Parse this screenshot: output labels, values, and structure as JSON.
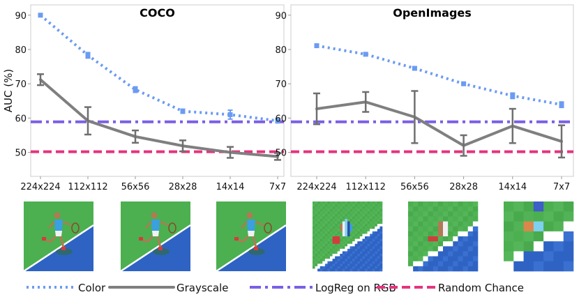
{
  "colors": {
    "color": "#6b9bf2",
    "grayscale": "#7f7f7f",
    "logreg": "#7b5fe6",
    "random": "#e6337f",
    "grass": "#4caf50",
    "court": "#2e63c4"
  },
  "chart_data": [
    {
      "type": "line",
      "title": "COCO",
      "ylabel": "AUC (%)",
      "xlabel": "",
      "categories": [
        "224x224",
        "112x112",
        "56x56",
        "28x28",
        "14x14",
        "7x7"
      ],
      "ylim": [
        43,
        93
      ],
      "yticks": [
        50,
        60,
        70,
        80,
        90
      ],
      "series": [
        {
          "name": "Color",
          "style": "dotted",
          "values": [
            90,
            78.3,
            68.3,
            62,
            61,
            59.2
          ],
          "err": [
            0.4,
            0.8,
            0.8,
            0.6,
            1.3,
            0.6
          ]
        },
        {
          "name": "Grayscale",
          "style": "solid",
          "values": [
            71.2,
            59.2,
            54.6,
            51.9,
            50,
            48.8
          ],
          "err": [
            1.6,
            4,
            1.8,
            1.6,
            1.6,
            1
          ]
        }
      ],
      "hlines": [
        {
          "name": "LogReg on RGB",
          "style": "dashdot",
          "value": 58.9
        },
        {
          "name": "Random Chance",
          "style": "dashed",
          "value": 50.2
        }
      ]
    },
    {
      "type": "line",
      "title": "OpenImages",
      "ylabel": "",
      "xlabel": "",
      "categories": [
        "224x224",
        "112x112",
        "56x56",
        "28x28",
        "14x14",
        "7x7"
      ],
      "ylim": [
        43,
        93
      ],
      "yticks": [
        50,
        60,
        70,
        80,
        90
      ],
      "series": [
        {
          "name": "Color",
          "style": "dotted",
          "values": [
            81.1,
            78.6,
            74.5,
            70,
            66.5,
            63.9
          ],
          "err": [
            0.4,
            0.4,
            0.4,
            0.4,
            0.8,
            0.8
          ]
        },
        {
          "name": "Grayscale",
          "style": "solid",
          "values": [
            62.7,
            64.7,
            60.3,
            52,
            57.7,
            53.2
          ],
          "err": [
            4.5,
            2.9,
            7.6,
            3,
            5,
            4.7
          ]
        }
      ],
      "hlines": [
        {
          "name": "LogReg on RGB",
          "style": "dashdot",
          "value": 58.9
        },
        {
          "name": "Random Chance",
          "style": "dashed",
          "value": 50.2
        }
      ]
    }
  ],
  "thumbnails": {
    "resolutions": [
      "224x224",
      "112x112",
      "56x56",
      "28x28",
      "14x14",
      "7x7"
    ],
    "subject": "tennis-player-on-court"
  },
  "legend": [
    {
      "label": "Color",
      "key": "color",
      "style": "dotted"
    },
    {
      "label": "Grayscale",
      "key": "grayscale",
      "style": "solid"
    },
    {
      "label": "LogReg on RGB",
      "key": "logreg",
      "style": "dashdot"
    },
    {
      "label": "Random Chance",
      "key": "random",
      "style": "dashed"
    }
  ]
}
